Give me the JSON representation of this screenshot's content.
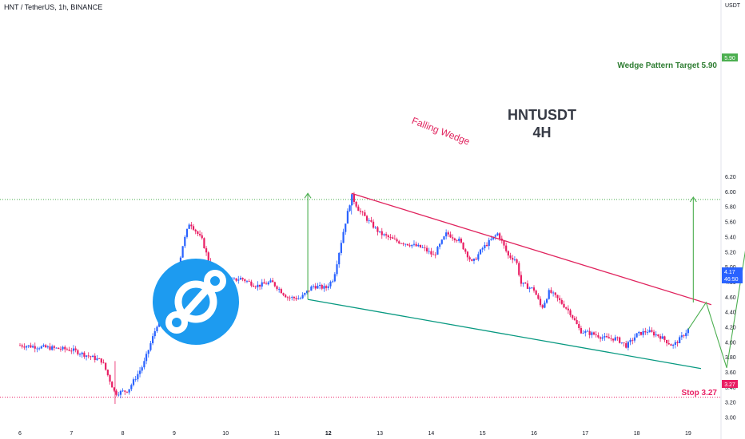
{
  "header": {
    "title": "HNT / TetherUS, 1h, BINANCE"
  },
  "axis": {
    "unit": "USDT"
  },
  "annotations": {
    "chart_title_line1": "HNTUSDT",
    "chart_title_line2": "4H",
    "falling_wedge": "Falling Wedge",
    "target_label": "Wedge Pattern Target 5.90",
    "stop_label": "Stop 3.27"
  },
  "price_labels": {
    "target": "5.90",
    "stop": "3.27",
    "last_price": "4.17",
    "countdown": "46:50"
  },
  "colors": {
    "up": "#2962ff",
    "down": "#e91e63",
    "wedge_upper": "#e0245e",
    "wedge_lower": "#089981",
    "projection": "#4caf50",
    "stop": "#e91e63",
    "logo": "#1d9bf0"
  },
  "chart_data": {
    "type": "candlestick",
    "ylim": [
      3.0,
      6.3
    ],
    "yticks": [
      "6.20",
      "6.00",
      "5.80",
      "5.60",
      "5.40",
      "5.20",
      "5.00",
      "4.80",
      "4.60",
      "4.40",
      "4.20",
      "4.00",
      "3.80",
      "3.60",
      "3.40",
      "3.20",
      "3.00"
    ],
    "xticks": [
      "6",
      "7",
      "8",
      "9",
      "10",
      "11",
      "12",
      "13",
      "14",
      "15",
      "16",
      "17",
      "18",
      "19"
    ],
    "keypoints": [
      [
        0.0,
        3.96
      ],
      [
        1.0,
        3.9
      ],
      [
        1.6,
        3.75
      ],
      [
        1.85,
        3.32
      ],
      [
        2.1,
        3.36
      ],
      [
        2.4,
        3.7
      ],
      [
        2.75,
        4.4
      ],
      [
        3.0,
        4.6
      ],
      [
        3.15,
        5.25
      ],
      [
        3.3,
        5.6
      ],
      [
        3.55,
        5.35
      ],
      [
        3.75,
        4.9
      ],
      [
        4.0,
        4.8
      ],
      [
        4.3,
        4.85
      ],
      [
        4.6,
        4.75
      ],
      [
        4.9,
        4.8
      ],
      [
        5.2,
        4.6
      ],
      [
        5.45,
        4.58
      ],
      [
        5.7,
        4.75
      ],
      [
        5.95,
        4.72
      ],
      [
        6.1,
        4.85
      ],
      [
        6.3,
        5.5
      ],
      [
        6.45,
        5.95
      ],
      [
        6.6,
        5.75
      ],
      [
        6.8,
        5.6
      ],
      [
        7.0,
        5.45
      ],
      [
        7.3,
        5.35
      ],
      [
        7.6,
        5.3
      ],
      [
        7.85,
        5.25
      ],
      [
        8.05,
        5.15
      ],
      [
        8.3,
        5.45
      ],
      [
        8.55,
        5.35
      ],
      [
        8.8,
        5.05
      ],
      [
        9.0,
        5.25
      ],
      [
        9.3,
        5.45
      ],
      [
        9.5,
        5.15
      ],
      [
        9.65,
        5.1
      ],
      [
        9.75,
        4.78
      ],
      [
        10.0,
        4.7
      ],
      [
        10.15,
        4.45
      ],
      [
        10.3,
        4.68
      ],
      [
        10.5,
        4.55
      ],
      [
        10.7,
        4.4
      ],
      [
        10.9,
        4.15
      ],
      [
        11.2,
        4.1
      ],
      [
        11.4,
        4.05
      ],
      [
        11.6,
        4.05
      ],
      [
        11.8,
        3.95
      ],
      [
        12.0,
        4.1
      ],
      [
        12.2,
        4.15
      ],
      [
        12.45,
        4.08
      ],
      [
        12.7,
        3.95
      ],
      [
        12.85,
        4.05
      ],
      [
        13.0,
        4.17
      ]
    ],
    "series": [
      {
        "name": "Falling Wedge",
        "kind": "upper-trendline",
        "points": [
          [
            6.45,
            5.98
          ],
          [
            13.45,
            4.5
          ]
        ]
      },
      {
        "kind": "lower-trendline",
        "points": [
          [
            5.6,
            4.57
          ],
          [
            13.25,
            3.65
          ]
        ]
      },
      {
        "kind": "projection-arrow",
        "points": [
          [
            5.6,
            4.57
          ],
          [
            5.6,
            5.98
          ]
        ]
      },
      {
        "kind": "projection-arrow",
        "points": [
          [
            13.1,
            4.53
          ],
          [
            13.1,
            5.93
          ]
        ]
      },
      {
        "kind": "projection-path",
        "points": [
          [
            13.0,
            4.17
          ],
          [
            13.35,
            4.53
          ],
          [
            13.75,
            3.66
          ],
          [
            14.25,
            5.8
          ]
        ]
      }
    ],
    "levels": [
      {
        "label": "Wedge Pattern Target 5.90",
        "value": 5.9
      },
      {
        "label": "Stop 3.27",
        "value": 3.27
      }
    ]
  }
}
